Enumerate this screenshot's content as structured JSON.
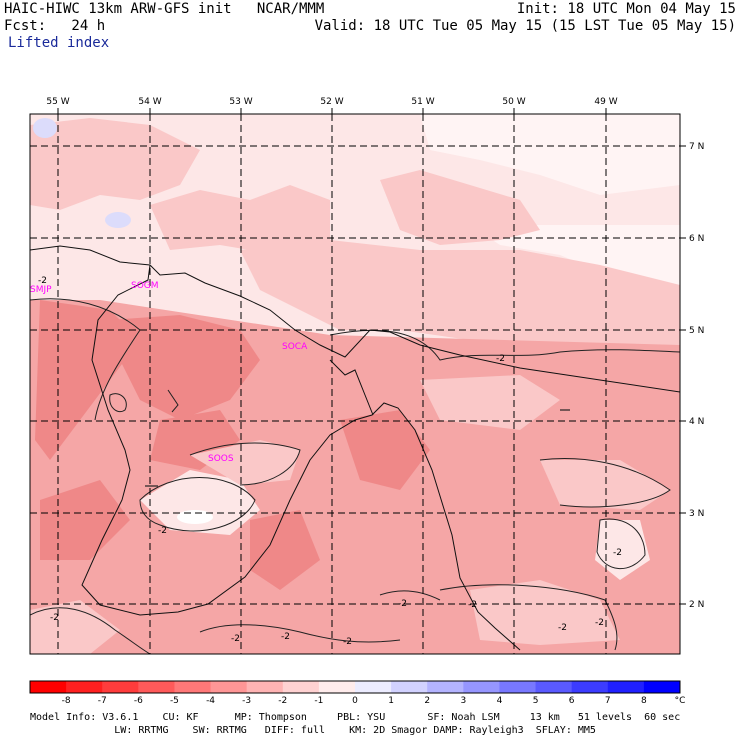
{
  "header": {
    "model_title": "HAIC-HIWC 13km ARW-GFS init   NCAR/MMM",
    "forecast": "Fcst:   24 h",
    "field": "Lifted index",
    "init": "Init: 18 UTC Mon 04 May 15",
    "valid": "Valid: 18 UTC Tue 05 May 15 (15 LST Tue 05 May 15)"
  },
  "map": {
    "lon_labels": [
      "55 W",
      "54 W",
      "53 W",
      "52 W",
      "51 W",
      "50 W",
      "49 W"
    ],
    "lat_labels": [
      "7 N",
      "6 N",
      "5 N",
      "4 N",
      "3 N",
      "2 N"
    ],
    "stations": [
      "SMJP",
      "SOGM",
      "SOCA",
      "SOOS"
    ],
    "contour_labels": [
      "-2",
      "-2",
      "-2",
      "-2",
      "-2",
      "-2",
      "-2",
      "-2",
      "-2",
      "-2",
      "-2",
      "-2"
    ],
    "fill_levels_color": {
      "minus1_to_0": "#fde7e7",
      "minus2_to_minus1": "#fac8c8",
      "minus3_to_minus2": "#f5a6a6",
      "minus4_to_minus3": "#ef8888",
      "zero_to_1": "#ffffff",
      "one_to_2": "#dcdcfb"
    },
    "station_color": "#ff00ff"
  },
  "colorbar": {
    "ticks": [
      "-8",
      "-7",
      "-6",
      "-5",
      "-4",
      "-3",
      "-2",
      "-1",
      "0",
      "1",
      "2",
      "3",
      "4",
      "5",
      "6",
      "7",
      "8"
    ],
    "unit": "°C",
    "colors": [
      "#ff0000",
      "#ff2020",
      "#ff3c3c",
      "#ff5a5a",
      "#ff7878",
      "#ff9696",
      "#ffb4b4",
      "#ffd2d2",
      "#ffecec",
      "#ececff",
      "#d2d2ff",
      "#b4b4ff",
      "#9696ff",
      "#7878ff",
      "#5a5aff",
      "#3c3cff",
      "#2020ff",
      "#0000ff"
    ]
  },
  "footer": {
    "line1": "Model Info: V3.6.1    CU: KF      MP: Thompson     PBL: YSU       SF: Noah LSM     13 km   51 levels  60 sec",
    "line2": "              LW: RRTMG    SW: RRTMG   DIFF: full    KM: 2D Smagor DAMP: Rayleigh3  SFLAY: MM5"
  }
}
